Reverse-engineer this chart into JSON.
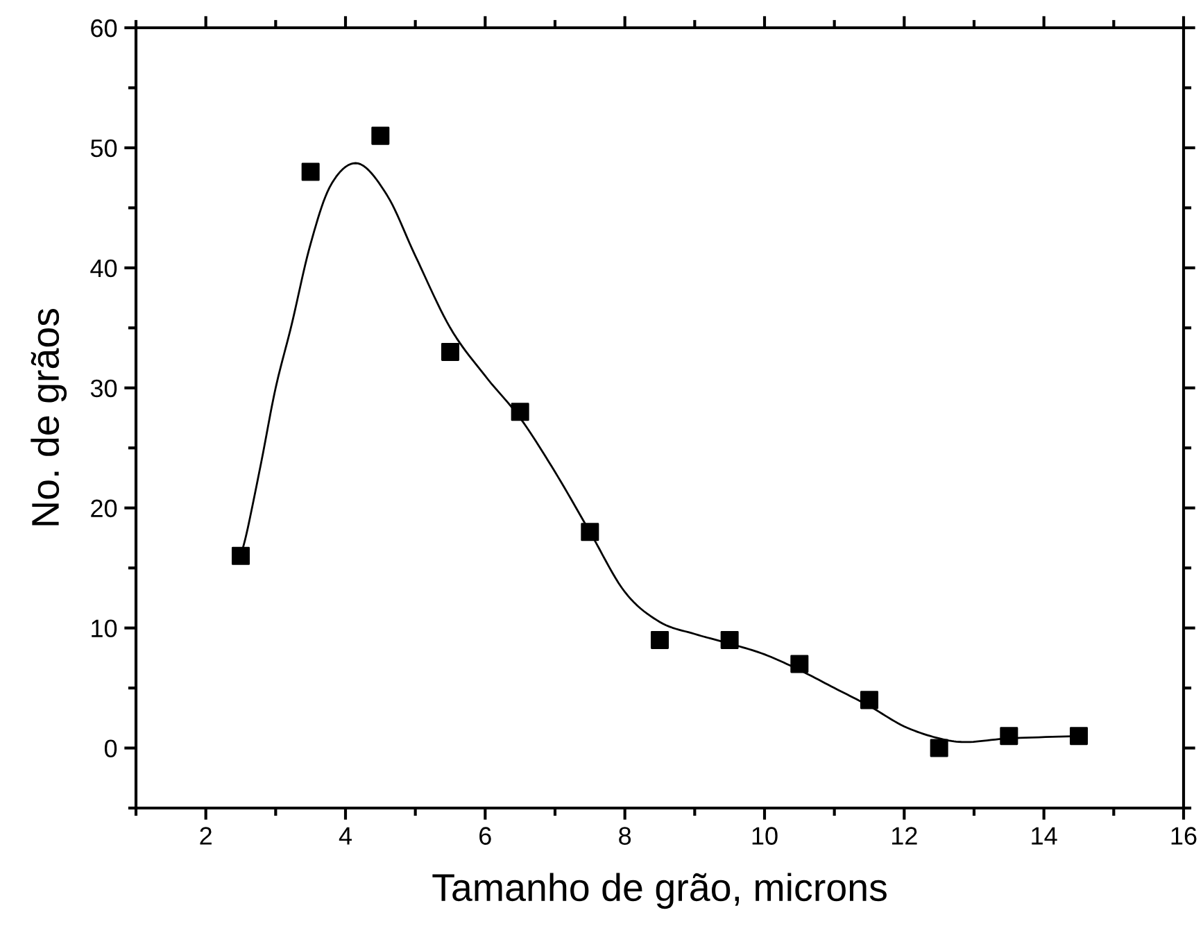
{
  "chart_data": {
    "type": "scatter",
    "xlabel": "Tamanho de grão, microns",
    "ylabel": "No. de grãos",
    "xlim": [
      1,
      16
    ],
    "xticks": [
      2,
      4,
      6,
      8,
      10,
      12,
      14,
      16
    ],
    "ylim": [
      -5,
      60
    ],
    "yticks": [
      0,
      10,
      20,
      30,
      40,
      50,
      60
    ],
    "grid": false,
    "series": [
      {
        "marker": "square",
        "color": "#000000",
        "x": [
          2.5,
          3.5,
          4.5,
          5.5,
          6.5,
          7.5,
          8.5,
          9.5,
          10.5,
          11.5,
          12.5,
          13.5,
          14.5
        ],
        "values": [
          16,
          48,
          51,
          33,
          28,
          18,
          9,
          9,
          7,
          4,
          0,
          1,
          1
        ]
      },
      {
        "type": "line",
        "color": "#000000",
        "x": [
          2.5,
          2.6,
          2.8,
          3.0,
          3.23,
          3.5,
          3.8,
          4.18,
          4.6,
          5.0,
          5.5,
          6.0,
          6.5,
          7.0,
          7.5,
          8.0,
          8.5,
          9.0,
          9.5,
          10.0,
          10.5,
          11.0,
          11.5,
          12.0,
          12.5,
          12.9,
          13.5,
          14.5
        ],
        "values": [
          16,
          18.3,
          24,
          30,
          35.3,
          42,
          47,
          48.7,
          46,
          41,
          35,
          31,
          27.5,
          23,
          18,
          13,
          10.5,
          9.5,
          8.7,
          7.8,
          6.5,
          5,
          3.5,
          1.8,
          0.8,
          0.5,
          0.8,
          1
        ]
      }
    ]
  }
}
